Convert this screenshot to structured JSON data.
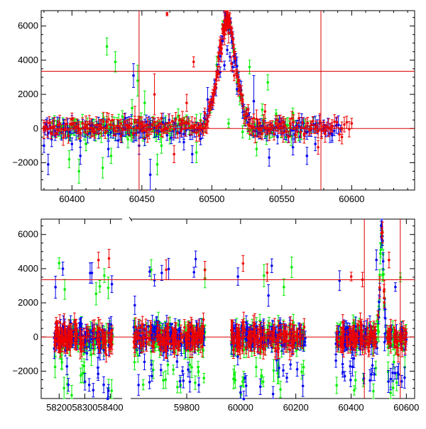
{
  "chart_data": [
    {
      "type": "scatter",
      "panel": "top",
      "title": "",
      "xlabel": "",
      "ylabel": "",
      "xlim": [
        60378,
        60645
      ],
      "ylim": [
        -3600,
        6900
      ],
      "x_ticks": [
        60400,
        60450,
        60500,
        60550,
        60600
      ],
      "x_tick_labels": [
        "60400",
        "60450",
        "60500",
        "60550",
        "60600"
      ],
      "y_ticks": [
        -2000,
        0,
        2000,
        4000,
        6000
      ],
      "y_tick_labels": [
        "−2000",
        "0",
        "2000",
        "4000",
        "6000"
      ],
      "grid": false,
      "hlines": [
        0,
        3350
      ],
      "vlines": [
        60448,
        60578
      ],
      "series": [
        {
          "color": "#00ee00",
          "x": [
            60386,
            60392,
            60398,
            60402,
            60405,
            60410,
            60414,
            60418,
            60422,
            60425,
            60428,
            60431,
            60436,
            60440,
            60443,
            60447,
            60452,
            60458,
            60461,
            60464,
            60470,
            60476,
            60482,
            60489,
            60495,
            60512,
            60518,
            60522,
            60527,
            60532,
            60536,
            60540,
            60546,
            60553,
            60558,
            60566,
            60575
          ],
          "y": [
            -200,
            100,
            -1800,
            300,
            -2500,
            -900,
            200,
            0,
            -2300,
            4800,
            -1600,
            3900,
            700,
            150,
            1200,
            2800,
            1500,
            300,
            -2100,
            -1000,
            -600,
            700,
            400,
            -1400,
            100,
            300,
            2700,
            -200,
            3600,
            -1200,
            1100,
            2700,
            800,
            -500,
            900,
            300,
            100
          ],
          "err": [
            300,
            250,
            500,
            250,
            700,
            400,
            250,
            300,
            600,
            500,
            450,
            600,
            350,
            400,
            500,
            900,
            700,
            400,
            600,
            450,
            300,
            450,
            400,
            600,
            250,
            250,
            500,
            350,
            400,
            400,
            350,
            450,
            300,
            300,
            300,
            250,
            250
          ]
        },
        {
          "color": "#0000ee",
          "x": [
            60380,
            60383,
            60388,
            60394,
            60400,
            60406,
            60413,
            60419,
            60426,
            60433,
            60438,
            60444,
            60448,
            60452,
            60456,
            60462,
            60468,
            60474,
            60480,
            60486,
            60492,
            60497,
            60502,
            60506,
            60509,
            60511,
            60513,
            60515,
            60518,
            60522,
            60526,
            60530,
            60535,
            60541,
            60547,
            60552,
            60558,
            60563,
            60568,
            60574,
            60580,
            60586,
            60592
          ],
          "y": [
            -1000,
            -2100,
            -400,
            300,
            -900,
            -1600,
            200,
            -300,
            -1200,
            -700,
            600,
            3100,
            -1000,
            -600,
            -2700,
            100,
            -400,
            300,
            -800,
            -1500,
            -600,
            1700,
            2600,
            3300,
            3700,
            4600,
            4200,
            3600,
            2300,
            1300,
            800,
            1600,
            -300,
            -1700,
            -500,
            100,
            -1100,
            -500,
            -1600,
            -900,
            200,
            -400,
            0
          ],
          "err": [
            400,
            600,
            300,
            250,
            350,
            500,
            250,
            300,
            450,
            400,
            300,
            700,
            500,
            400,
            900,
            250,
            300,
            300,
            450,
            500,
            350,
            700,
            300,
            300,
            250,
            250,
            250,
            300,
            300,
            700,
            400,
            1500,
            300,
            500,
            400,
            300,
            450,
            300,
            500,
            400,
            300,
            300,
            200
          ]
        },
        {
          "color": "#ee0000",
          "x": [
            60380,
            60385,
            60390,
            60395,
            60400,
            60405,
            60410,
            60415,
            60420,
            60425,
            60430,
            60435,
            60440,
            60445,
            60450,
            60454,
            60459,
            60464,
            60468,
            60473,
            60478,
            60482,
            60487,
            60491,
            60495,
            60498,
            60501,
            60503,
            60505,
            60507,
            60509,
            60510,
            60511,
            60512,
            60514,
            60516,
            60519,
            60522,
            60526,
            60530,
            60534,
            60538,
            60542,
            60547,
            60551,
            60556,
            60561,
            60566,
            60571,
            60576,
            60581,
            60586,
            60593,
            60600
          ],
          "y": [
            100,
            -300,
            200,
            -100,
            300,
            0,
            100,
            -200,
            200,
            100,
            -100,
            300,
            200,
            500,
            100,
            -400,
            2000,
            600,
            6700,
            -1500,
            300,
            1500,
            3900,
            100,
            900,
            1300,
            2000,
            2600,
            3200,
            4400,
            5500,
            6300,
            6800,
            5600,
            3800,
            3100,
            2200,
            1700,
            1100,
            600,
            300,
            1000,
            200,
            500,
            400,
            300,
            100,
            -300,
            200,
            -1100,
            -100,
            100,
            -500,
            300
          ],
          "err": [
            250,
            300,
            250,
            300,
            300,
            250,
            300,
            250,
            250,
            300,
            300,
            250,
            300,
            800,
            300,
            400,
            1200,
            300,
            100,
            500,
            300,
            500,
            300,
            250,
            300,
            300,
            300,
            300,
            400,
            500,
            600,
            800,
            700,
            600,
            400,
            300,
            300,
            300,
            300,
            250,
            250,
            400,
            250,
            250,
            300,
            250,
            250,
            300,
            250,
            400,
            250,
            250,
            400,
            300
          ]
        }
      ]
    },
    {
      "type": "scatter",
      "panel": "bottom",
      "title": "",
      "xlabel": "",
      "ylabel": "",
      "x_segments": [
        {
          "xlim": [
            58130,
            58440
          ],
          "x_ticks": [
            58200,
            58300,
            58400
          ],
          "x_tick_labels": [
            "58200",
            "58300",
            "58400"
          ]
        },
        {
          "xlim": [
            59590,
            59890
          ],
          "x_ticks": [
            59800
          ],
          "x_tick_labels": [
            "59800"
          ]
        },
        {
          "xlim": [
            59890,
            60630
          ],
          "x_ticks": [
            60000,
            60200,
            60400,
            60600
          ],
          "x_tick_labels": [
            "60000",
            "60200",
            "60400",
            "60600"
          ]
        }
      ],
      "ylim": [
        -3600,
        6900
      ],
      "y_ticks": [
        -2000,
        0,
        2000,
        4000,
        6000
      ],
      "y_tick_labels": [
        "−2000",
        "0",
        "2000",
        "4000",
        "6000"
      ],
      "grid": false,
      "hlines": [
        0,
        3350
      ],
      "vlines": [
        60448,
        60578
      ],
      "data_ranges": [
        [
          58180,
          58410
        ],
        [
          59595,
          59870
        ],
        [
          59965,
          60235
        ],
        [
          60345,
          60600
        ]
      ],
      "point_estimates": "dense noisy light-curve points in each observing season, scatter about 0 with error bars of a few hundred; peak near 60511 reaching about 6500"
    }
  ]
}
